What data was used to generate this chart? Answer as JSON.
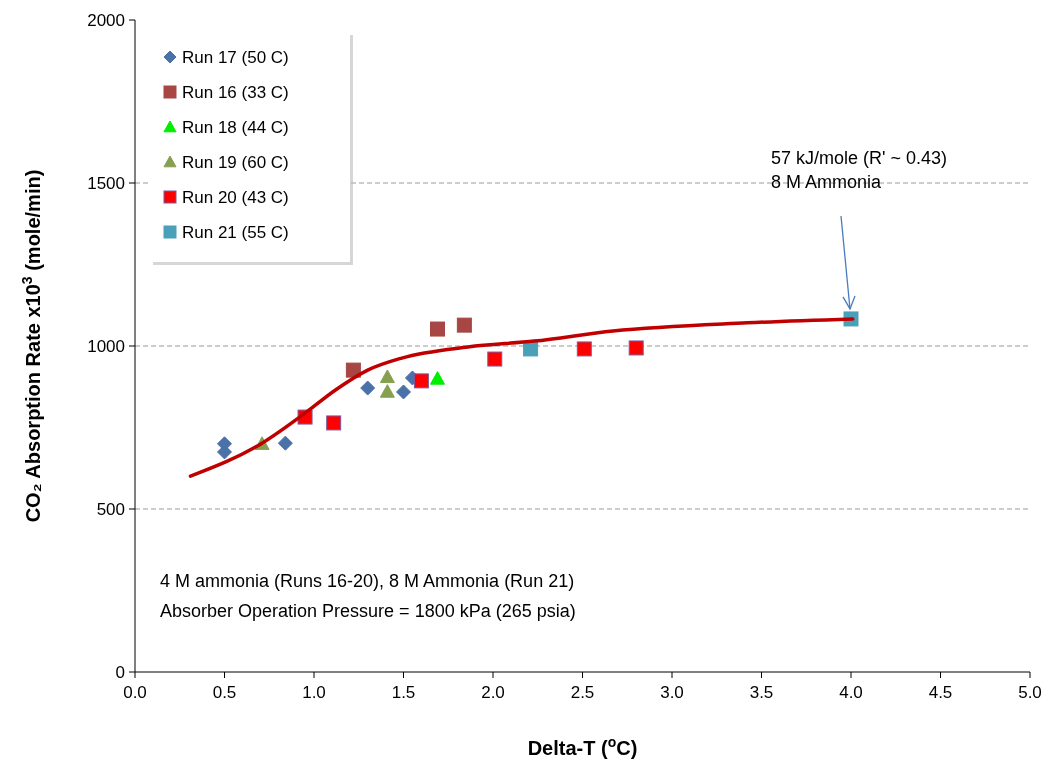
{
  "chart_data": {
    "type": "scatter",
    "xlabel": "Delta-T ($^{o}$C)",
    "ylabel": "CO₂ Absorption Rate x10$^{3}$ (mole/min)",
    "xlim": [
      0,
      5
    ],
    "ylim": [
      0,
      2000
    ],
    "xticks": [
      {
        "value": 0,
        "label": "0.0"
      },
      {
        "value": 0.5,
        "label": "0.5"
      },
      {
        "value": 1,
        "label": "1.0"
      },
      {
        "value": 1.5,
        "label": "1.5"
      },
      {
        "value": 2,
        "label": "2.0"
      },
      {
        "value": 2.5,
        "label": "2.5"
      },
      {
        "value": 3,
        "label": "3.0"
      },
      {
        "value": 3.5,
        "label": "3.5"
      },
      {
        "value": 4,
        "label": "4.0"
      },
      {
        "value": 4.5,
        "label": "4.5"
      },
      {
        "value": 5,
        "label": "5.0"
      }
    ],
    "yticks": [
      0,
      500,
      1000,
      1500,
      2000
    ],
    "grid": "y",
    "legend": "top left",
    "series": [
      {
        "name": "Run 17 (50 C)",
        "color": "#4a72a8",
        "marker": "diamond",
        "x": [
          0.5,
          0.5,
          0.84,
          1.3,
          1.5,
          1.55
        ],
        "values": [
          700,
          675,
          702,
          871,
          859,
          902
        ]
      },
      {
        "name": "Run 16 (33 C)",
        "color": "#a84644",
        "marker": "square",
        "x": [
          1.22,
          1.69,
          1.84
        ],
        "values": [
          926,
          1052,
          1064
        ]
      },
      {
        "name": "Run 18 (44 C)",
        "color": "#00ee00",
        "marker": "triangle",
        "x": [
          1.69
        ],
        "values": [
          900
        ]
      },
      {
        "name": "Run 19 (60 C)",
        "color": "#86a050",
        "marker": "triangle",
        "x": [
          0.71,
          1.41,
          1.41
        ],
        "values": [
          700,
          905,
          860
        ]
      },
      {
        "name": "Run 20 (43 C)",
        "color": "#ff0000",
        "marker": "square",
        "x": [
          0.95,
          1.11,
          1.6,
          2.01,
          2.51,
          2.8
        ],
        "values": [
          782,
          764,
          893,
          960,
          991,
          994
        ]
      },
      {
        "name": "Run 21 (55 C)",
        "color": "#4aa0b8",
        "marker": "square",
        "x": [
          2.21,
          4.0
        ],
        "values": [
          991,
          1083
        ]
      },
      {
        "type": "line",
        "color": "#c00000",
        "marker": "none",
        "x": [
          0.31,
          0.71,
          0.95,
          1.12,
          1.3,
          1.49,
          1.86,
          2.23,
          2.67,
          3.42,
          4.01
        ],
        "values": [
          601,
          702,
          794,
          865,
          926,
          963,
          997,
          1015,
          1046,
          1071,
          1083
        ]
      }
    ],
    "annotations": [
      "57 kJ/mole (R' ~ 0.43)\n8 M Ammonia",
      "4 M ammonia (Runs 16-20), 8 M Ammonia (Run 21)",
      "Absorber Operation Pressure = 1800 kPa (265 psia)"
    ]
  }
}
